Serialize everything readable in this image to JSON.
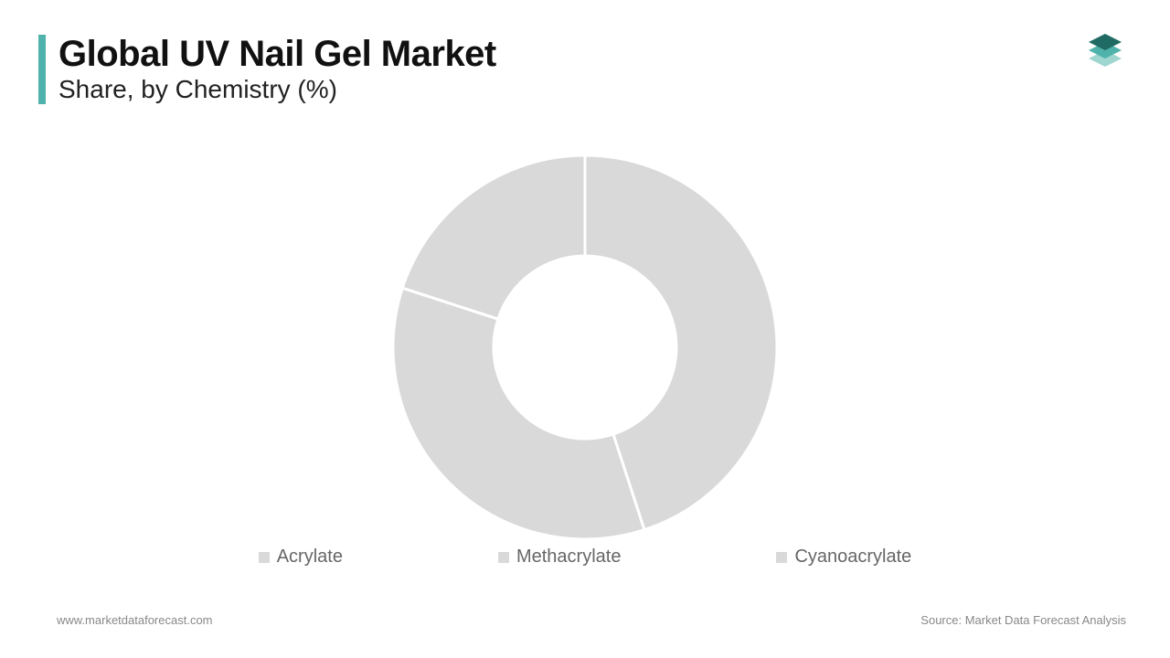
{
  "header": {
    "title": "Global UV Nail Gel Market",
    "subtitle": "Share, by Chemistry (%)",
    "accent_color": "#4fb3ab"
  },
  "logo": {
    "top_color": "#1f6b63",
    "mid_color": "#4fb3ab",
    "bot_color": "#9fd6cf"
  },
  "chart": {
    "type": "donut",
    "outer_radius": 210,
    "inner_radius": 100,
    "background_color": "#ffffff",
    "gap_color": "#ffffff",
    "gap_width": 3,
    "segments": [
      {
        "label": "Acrylate",
        "value": 45,
        "color": "#d9d9d9"
      },
      {
        "label": "Methacrylate",
        "value": 35,
        "color": "#d9d9d9"
      },
      {
        "label": "Cyanoacrylate",
        "value": 20,
        "color": "#d9d9d9"
      }
    ],
    "start_angle_deg": -90
  },
  "legend": {
    "items": [
      "Acrylate",
      "Methacrylate",
      "Cyanoacrylate"
    ],
    "marker_color": "#d9d9d9",
    "text_color": "#666666",
    "fontsize": 20
  },
  "footer": {
    "left": "www.marketdataforecast.com",
    "right": "Source: Market Data Forecast Analysis",
    "color": "#888888",
    "fontsize": 13
  }
}
